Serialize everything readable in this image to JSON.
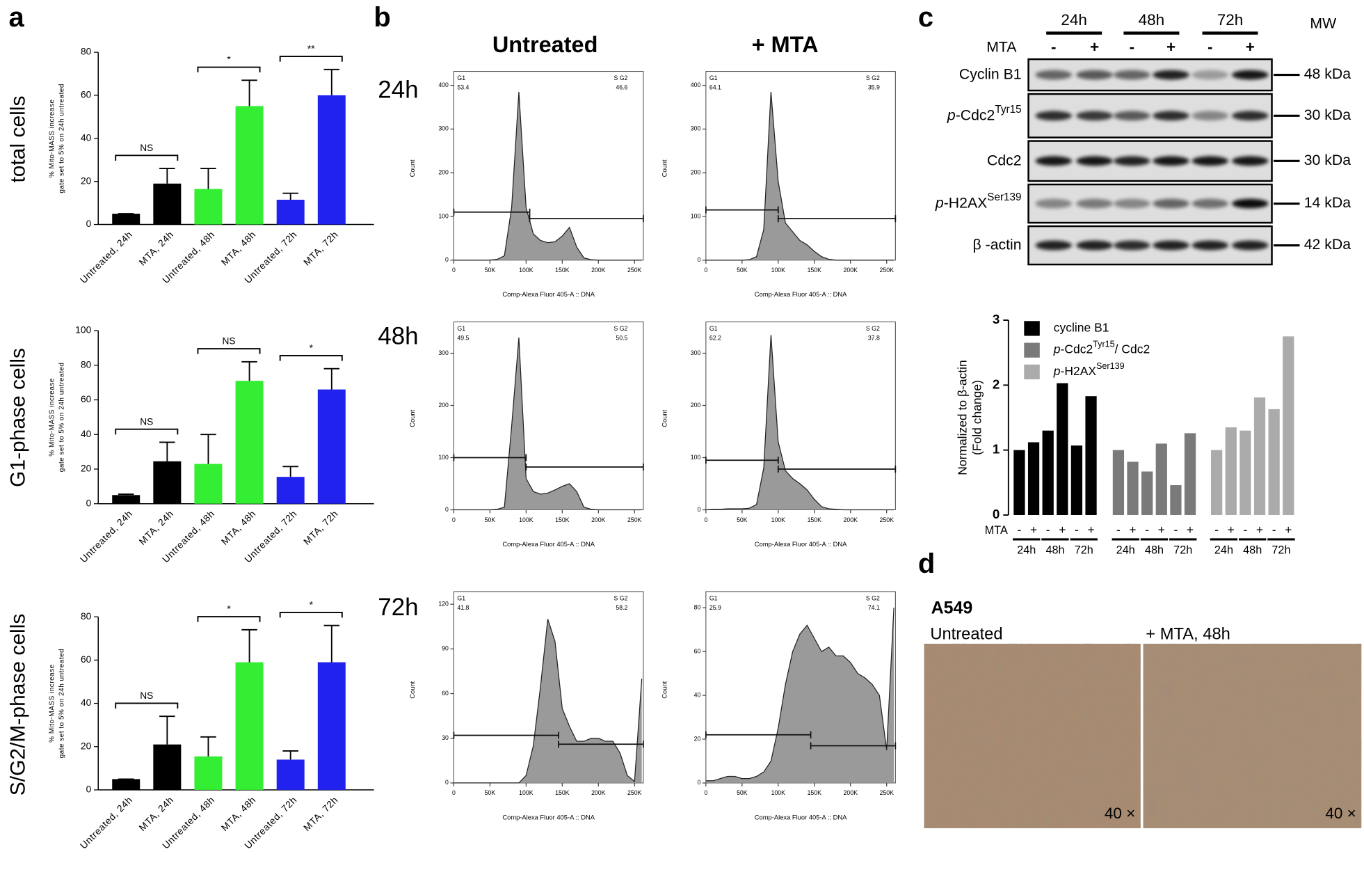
{
  "panel_labels": [
    "a",
    "b",
    "c",
    "d"
  ],
  "flow": {
    "columns": [
      "Untreated",
      "+ MTA"
    ],
    "rows": [
      {
        "label": "24h",
        "color": "#000000"
      },
      {
        "label": "48h",
        "color": "#44ee44"
      },
      {
        "label": "72h",
        "color": "#3333dd"
      }
    ]
  },
  "blot": {
    "times": [
      "24h",
      "48h",
      "72h"
    ],
    "treatment_label": "MTA",
    "lanes": [
      "-",
      "+",
      "-",
      "+",
      "-",
      "+"
    ],
    "mw_header": "MW",
    "rows": [
      {
        "text": "Cyclin B1",
        "mw": "48 kDa"
      },
      {
        "italic": "p",
        "text": "-Cdc2",
        "sup": "Tyr15",
        "mw": "30 kDa"
      },
      {
        "text": "Cdc2",
        "mw": "30 kDa"
      },
      {
        "italic": "p",
        "text": "-H2AX",
        "sup": "Ser139",
        "mw": "14 kDa"
      },
      {
        "text": "β -actin",
        "mw": "42 kDa"
      }
    ]
  },
  "micrograph": {
    "cell_line": "A549",
    "panels": [
      {
        "label": "Untreated",
        "magnification": "40 ×"
      },
      {
        "label": "+ MTA, 48h",
        "magnification": "40 ×"
      }
    ]
  },
  "chart_data": [
    {
      "type": "bar",
      "row_label": "total cells",
      "y_label": [
        "% Mito-MASS increase",
        "gate set to 5% on 24h untreated"
      ],
      "categories": [
        "Untreated, 24h",
        "MTA, 24h",
        "Untreated, 48h",
        "MTA, 48h",
        "Untreated, 72h",
        "MTA, 72h"
      ],
      "values": [
        5,
        19,
        16.5,
        55,
        11.5,
        60
      ],
      "errors": [
        0,
        7,
        9.5,
        12,
        3,
        12
      ],
      "colors": [
        "#000000",
        "#000000",
        "#33ee33",
        "#33ee33",
        "#2222ee",
        "#2222ee"
      ],
      "ylim": [
        0,
        80
      ],
      "yticks": [
        0,
        20,
        40,
        60,
        80
      ],
      "significance": [
        "NS",
        "*",
        "**"
      ]
    },
    {
      "type": "bar",
      "row_label": "G1-phase cells",
      "y_label": [
        "% Mito-MASS increase",
        "gate set to 5% on 24h untreated"
      ],
      "categories": [
        "Untreated, 24h",
        "MTA, 24h",
        "Untreated, 48h",
        "MTA, 48h",
        "Untreated, 72h",
        "MTA, 72h"
      ],
      "values": [
        5,
        24.5,
        23,
        71,
        15.5,
        66
      ],
      "errors": [
        0.5,
        11,
        17,
        11,
        6,
        12
      ],
      "colors": [
        "#000000",
        "#000000",
        "#33ee33",
        "#33ee33",
        "#2222ee",
        "#2222ee"
      ],
      "ylim": [
        0,
        100
      ],
      "yticks": [
        0,
        20,
        40,
        60,
        80,
        100
      ],
      "significance": [
        "NS",
        "NS",
        "*"
      ]
    },
    {
      "type": "bar",
      "row_label": "S/G2/M-phase cells",
      "y_label": [
        "% Mito-MASS increase",
        "gate set to 5% on 24h untreated"
      ],
      "categories": [
        "Untreated, 24h",
        "MTA, 24h",
        "Untreated, 48h",
        "MTA, 48h",
        "Untreated, 72h",
        "MTA, 72h"
      ],
      "values": [
        5,
        21,
        15.5,
        59,
        14,
        59
      ],
      "errors": [
        0,
        13,
        9,
        15,
        4,
        17
      ],
      "colors": [
        "#000000",
        "#000000",
        "#33ee33",
        "#33ee33",
        "#2222ee",
        "#2222ee"
      ],
      "ylim": [
        0,
        80
      ],
      "yticks": [
        0,
        20,
        40,
        60,
        80
      ],
      "significance": [
        "NS",
        "*",
        "*"
      ]
    },
    {
      "type": "area",
      "x_label": "Comp-Alexa Fluor 405-A :: DNA",
      "y_label": "Count",
      "color": "#9a9a9a",
      "x": [
        0,
        10000,
        20000,
        30000,
        40000,
        50000,
        60000,
        70000,
        80000,
        90000,
        100000,
        110000,
        120000,
        130000,
        140000,
        150000,
        160000,
        170000,
        180000,
        190000,
        200000,
        210000,
        220000,
        230000,
        240000,
        250000,
        260000
      ],
      "values": [
        0,
        0,
        0,
        0,
        0,
        0,
        2,
        10,
        120,
        385,
        120,
        60,
        45,
        40,
        42,
        55,
        75,
        30,
        5,
        1,
        0,
        0,
        0,
        0,
        0,
        0,
        0
      ],
      "xlim": [
        0,
        262144
      ],
      "xticks": [
        0,
        {
          "value": 50000,
          "label": "50K"
        },
        {
          "value": 100000,
          "label": "100K"
        },
        {
          "value": 150000,
          "label": "150K"
        },
        {
          "value": 200000,
          "label": "200K"
        },
        {
          "value": 250000,
          "label": "250K"
        }
      ],
      "ylim": [
        0,
        420
      ],
      "yticks": [
        0,
        100,
        200,
        300,
        400
      ],
      "gates": [
        {
          "name": "G1",
          "percent": 53.4,
          "range": [
            0,
            105000
          ],
          "level": 110
        },
        {
          "name": "S G2",
          "percent": 46.6,
          "range": [
            105000,
            262144
          ],
          "level": 95
        }
      ]
    },
    {
      "type": "area",
      "x_label": "Comp-Alexa Fluor 405-A :: DNA",
      "y_label": "Count",
      "color": "#9a9a9a",
      "x": [
        0,
        10000,
        20000,
        30000,
        40000,
        50000,
        60000,
        70000,
        80000,
        90000,
        100000,
        110000,
        120000,
        130000,
        140000,
        150000,
        160000,
        170000,
        180000,
        190000,
        200000,
        210000,
        220000,
        230000,
        240000,
        250000,
        260000
      ],
      "values": [
        0,
        0,
        0,
        0,
        0,
        0,
        1,
        8,
        70,
        385,
        180,
        85,
        65,
        45,
        35,
        20,
        8,
        2,
        0,
        0,
        0,
        0,
        0,
        0,
        0,
        0,
        0
      ],
      "xlim": [
        0,
        262144
      ],
      "xticks": [
        0,
        {
          "value": 50000,
          "label": "50K"
        },
        {
          "value": 100000,
          "label": "100K"
        },
        {
          "value": 150000,
          "label": "150K"
        },
        {
          "value": 200000,
          "label": "200K"
        },
        {
          "value": 250000,
          "label": "250K"
        }
      ],
      "ylim": [
        0,
        420
      ],
      "yticks": [
        0,
        100,
        200,
        300,
        400
      ],
      "gates": [
        {
          "name": "G1",
          "percent": 64.1,
          "range": [
            0,
            100000
          ],
          "level": 115
        },
        {
          "name": "S G2",
          "percent": 35.9,
          "range": [
            100000,
            262144
          ],
          "level": 95
        }
      ]
    },
    {
      "type": "area",
      "x_label": "Comp-Alexa Fluor 405-A :: DNA",
      "y_label": "Count",
      "color": "#9a9a9a",
      "x": [
        0,
        10000,
        20000,
        30000,
        40000,
        50000,
        60000,
        70000,
        80000,
        90000,
        100000,
        110000,
        120000,
        130000,
        140000,
        150000,
        160000,
        170000,
        180000,
        190000,
        200000,
        210000,
        220000,
        230000,
        240000,
        250000,
        260000
      ],
      "values": [
        0,
        0,
        0,
        0,
        0,
        0,
        1,
        5,
        160,
        330,
        60,
        35,
        30,
        32,
        38,
        45,
        50,
        35,
        5,
        1,
        0,
        0,
        0,
        0,
        0,
        0,
        0
      ],
      "xlim": [
        0,
        262144
      ],
      "xticks": [
        0,
        {
          "value": 50000,
          "label": "50K"
        },
        {
          "value": 100000,
          "label": "100K"
        },
        {
          "value": 150000,
          "label": "150K"
        },
        {
          "value": 200000,
          "label": "200K"
        },
        {
          "value": 250000,
          "label": "250K"
        }
      ],
      "ylim": [
        0,
        350
      ],
      "yticks": [
        0,
        100,
        200,
        300
      ],
      "gates": [
        {
          "name": "G1",
          "percent": 49.5,
          "range": [
            0,
            100000
          ],
          "level": 100
        },
        {
          "name": "S G2",
          "percent": 50.5,
          "range": [
            100000,
            262144
          ],
          "level": 82
        }
      ]
    },
    {
      "type": "area",
      "x_label": "Comp-Alexa Fluor 405-A :: DNA",
      "y_label": "Count",
      "color": "#9a9a9a",
      "x": [
        0,
        10000,
        20000,
        30000,
        40000,
        50000,
        60000,
        70000,
        80000,
        90000,
        100000,
        110000,
        120000,
        130000,
        140000,
        150000,
        160000,
        170000,
        180000,
        190000,
        200000,
        210000,
        220000,
        230000,
        240000,
        250000,
        260000
      ],
      "values": [
        0,
        1,
        1,
        2,
        2,
        2,
        3,
        10,
        80,
        335,
        130,
        75,
        60,
        50,
        38,
        20,
        6,
        2,
        1,
        0,
        0,
        0,
        0,
        0,
        0,
        0,
        0
      ],
      "xlim": [
        0,
        262144
      ],
      "xticks": [
        0,
        {
          "value": 50000,
          "label": "50K"
        },
        {
          "value": 100000,
          "label": "100K"
        },
        {
          "value": 150000,
          "label": "150K"
        },
        {
          "value": 200000,
          "label": "200K"
        },
        {
          "value": 250000,
          "label": "250K"
        }
      ],
      "ylim": [
        0,
        350
      ],
      "yticks": [
        0,
        100,
        200,
        300
      ],
      "gates": [
        {
          "name": "G1",
          "percent": 62.2,
          "range": [
            0,
            100000
          ],
          "level": 95
        },
        {
          "name": "S G2",
          "percent": 37.8,
          "range": [
            100000,
            262144
          ],
          "level": 78
        }
      ]
    },
    {
      "type": "area",
      "x_label": "Comp-Alexa Fluor 405-A :: DNA",
      "y_label": "Count",
      "color": "#9a9a9a",
      "x": [
        0,
        10000,
        20000,
        30000,
        40000,
        50000,
        60000,
        70000,
        80000,
        90000,
        100000,
        110000,
        120000,
        130000,
        140000,
        150000,
        160000,
        170000,
        180000,
        190000,
        200000,
        210000,
        220000,
        230000,
        240000,
        250000,
        260000
      ],
      "values": [
        0,
        0,
        0,
        0,
        0,
        0,
        0,
        0,
        0,
        0,
        5,
        25,
        65,
        110,
        95,
        50,
        38,
        28,
        28,
        30,
        30,
        28,
        28,
        20,
        5,
        1,
        70
      ],
      "xlim": [
        0,
        262144
      ],
      "xticks": [
        0,
        {
          "value": 50000,
          "label": "50K"
        },
        {
          "value": 100000,
          "label": "100K"
        },
        {
          "value": 150000,
          "label": "150K"
        },
        {
          "value": 200000,
          "label": "200K"
        },
        {
          "value": 250000,
          "label": "250K"
        }
      ],
      "ylim": [
        0,
        125
      ],
      "yticks": [
        0,
        30,
        60,
        90,
        120
      ],
      "gates": [
        {
          "name": "G1",
          "percent": 41.8,
          "range": [
            0,
            145000
          ],
          "level": 32
        },
        {
          "name": "S G2",
          "percent": 58.2,
          "range": [
            145000,
            262144
          ],
          "level": 26
        }
      ]
    },
    {
      "type": "area",
      "x_label": "Comp-Alexa Fluor 405-A :: DNA",
      "y_label": "Count",
      "color": "#9a9a9a",
      "x": [
        0,
        10000,
        20000,
        30000,
        40000,
        50000,
        60000,
        70000,
        80000,
        90000,
        100000,
        110000,
        120000,
        130000,
        140000,
        150000,
        160000,
        170000,
        180000,
        190000,
        200000,
        210000,
        220000,
        230000,
        240000,
        250000,
        260000
      ],
      "values": [
        1,
        1,
        2,
        3,
        3,
        2,
        2,
        3,
        5,
        10,
        25,
        45,
        60,
        68,
        72,
        66,
        60,
        62,
        58,
        58,
        55,
        50,
        48,
        45,
        40,
        15,
        80
      ],
      "xlim": [
        0,
        262144
      ],
      "xticks": [
        0,
        {
          "value": 50000,
          "label": "50K"
        },
        {
          "value": 100000,
          "label": "100K"
        },
        {
          "value": 150000,
          "label": "150K"
        },
        {
          "value": 200000,
          "label": "200K"
        },
        {
          "value": 250000,
          "label": "250K"
        }
      ],
      "ylim": [
        0,
        85
      ],
      "yticks": [
        0,
        20,
        40,
        60,
        80
      ],
      "gates": [
        {
          "name": "G1",
          "percent": 25.9,
          "range": [
            0,
            145000
          ],
          "level": 22
        },
        {
          "name": "S G2",
          "percent": 74.1,
          "range": [
            145000,
            262144
          ],
          "level": 17
        }
      ]
    },
    {
      "type": "bar",
      "y_label": [
        "Normalized to β-actin",
        "(Fold change)"
      ],
      "x_label": "MTA",
      "categories": [
        "-",
        "+",
        "-",
        "+",
        "-",
        "+"
      ],
      "groups": [
        "24h",
        "48h",
        "72h"
      ],
      "ylim": [
        0,
        3
      ],
      "yticks": [
        0,
        1,
        2,
        3
      ],
      "series": [
        {
          "name": {
            "text": "cycline B1"
          },
          "color": "#000000",
          "values": [
            1,
            1.12,
            1.3,
            2.03,
            1.07,
            1.83
          ]
        },
        {
          "name": {
            "italic": "p",
            "text": "-Cdc2",
            "sup": "Tyr15",
            "after": "/ Cdc2"
          },
          "color": "#7a7a7a",
          "values": [
            1,
            0.82,
            0.67,
            1.1,
            0.46,
            1.26
          ]
        },
        {
          "name": {
            "italic": "p",
            "text": "-H2AX",
            "sup": "Ser139"
          },
          "color": "#ababab",
          "values": [
            1,
            1.35,
            1.3,
            1.81,
            1.63,
            2.75
          ]
        }
      ]
    }
  ]
}
